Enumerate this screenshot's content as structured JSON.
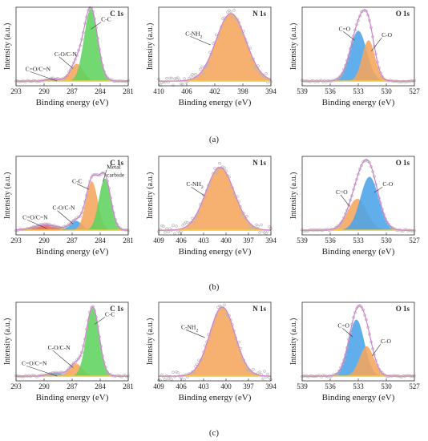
{
  "figure": {
    "rows": [
      {
        "label": "(a)"
      },
      {
        "label": "(b)"
      },
      {
        "label": "(c)"
      }
    ]
  },
  "colors": {
    "green": "#5fd35f",
    "orange": "#f5a55c",
    "blue": "#4aa3e8",
    "red": "#e8645a",
    "envelope": "#cf80cf",
    "baseline": "#f2d13c",
    "raw": "#b7b7b7"
  },
  "chart_data": [
    {
      "id": "a-C1s",
      "type": "area",
      "title": "C 1s",
      "xlabel": "Binding energy (eV)",
      "ylabel": "Intensity (a.u.)",
      "xlim": [
        293,
        281
      ],
      "xticks": [
        293,
        290,
        287,
        284,
        281
      ],
      "reverse_x": true,
      "components": [
        {
          "label": "C=O/C=N",
          "center": 289.0,
          "fwhm": 1.6,
          "amp": 0.03,
          "color": "blue"
        },
        {
          "label": "C-O/C-N",
          "center": 286.5,
          "fwhm": 1.6,
          "amp": 0.22,
          "color": "orange"
        },
        {
          "label": "C-C",
          "center": 285.0,
          "fwhm": 1.7,
          "amp": 0.92,
          "color": "green"
        }
      ],
      "annotations": [
        {
          "text": "C-C",
          "x": 283.9,
          "y": 0.82,
          "tx": 285.0,
          "ty": 0.72
        },
        {
          "text": "C-O/C-N",
          "x": 288.9,
          "y": 0.38,
          "tx": 286.9,
          "ty": 0.22
        },
        {
          "text": "C=O/C=N",
          "x": 292.0,
          "y": 0.19,
          "tx": 288.6,
          "ty": 0.06
        }
      ]
    },
    {
      "id": "a-N1s",
      "type": "area",
      "title": "N 1s",
      "xlabel": "Binding energy (eV)",
      "ylabel": "Intensity (a.u.)",
      "xlim": [
        410,
        394
      ],
      "xticks": [
        410,
        406,
        402,
        398,
        394
      ],
      "reverse_x": true,
      "components": [
        {
          "label": "C-NH2",
          "center": 399.7,
          "fwhm": 5.0,
          "amp": 0.86,
          "color": "orange"
        }
      ],
      "noisy": true,
      "annotations": [
        {
          "text": "C-NH2",
          "x": 406.2,
          "y": 0.64,
          "tx": 402.6,
          "ty": 0.52
        }
      ]
    },
    {
      "id": "a-O1s",
      "type": "area",
      "title": "O 1s",
      "xlabel": "Binding energy (eV)",
      "ylabel": "Intensity (a.u.)",
      "xlim": [
        539,
        527
      ],
      "xticks": [
        539,
        536,
        533,
        530,
        527
      ],
      "reverse_x": true,
      "components": [
        {
          "label": "C=O",
          "center": 533.0,
          "fwhm": 2.1,
          "amp": 0.64,
          "color": "blue"
        },
        {
          "label": "C-O",
          "center": 531.9,
          "fwhm": 1.6,
          "amp": 0.52,
          "color": "orange"
        }
      ],
      "annotations": [
        {
          "text": "C=O",
          "x": 535.1,
          "y": 0.7,
          "tx": 533.4,
          "ty": 0.58
        },
        {
          "text": "C-O",
          "x": 530.5,
          "y": 0.62,
          "tx": 531.6,
          "ty": 0.44
        }
      ]
    },
    {
      "id": "b-C1s",
      "type": "area",
      "title": "C 1s",
      "xlabel": "Binding energy (eV)",
      "ylabel": "Intensity (a.u.)",
      "xlim": [
        293,
        281
      ],
      "xticks": [
        293,
        290,
        287,
        284,
        281
      ],
      "reverse_x": true,
      "components": [
        {
          "label": "C=O/C=N",
          "center": 289.8,
          "fwhm": 3.0,
          "amp": 0.07,
          "color": "red"
        },
        {
          "label": "C-O/C-N",
          "center": 286.6,
          "fwhm": 1.5,
          "amp": 0.12,
          "color": "blue"
        },
        {
          "label": "C-C",
          "center": 284.9,
          "fwhm": 1.5,
          "amp": 0.62,
          "color": "orange"
        },
        {
          "label": "Metal carbide",
          "center": 283.5,
          "fwhm": 1.5,
          "amp": 0.66,
          "color": "green"
        }
      ],
      "annotations": [
        {
          "text": "Metal",
          "x": 283.3,
          "y": 0.84,
          "tx": 283.7,
          "ty": 0.68
        },
        {
          "text": "carbide",
          "x": 283.3,
          "y": 0.74,
          "tx": null,
          "ty": null
        },
        {
          "text": "C-C",
          "x": 287.0,
          "y": 0.66,
          "tx": 285.2,
          "ty": 0.58
        },
        {
          "text": "C-O/C-N",
          "x": 289.1,
          "y": 0.32,
          "tx": 286.9,
          "ty": 0.14
        },
        {
          "text": "C=O/C=N",
          "x": 292.3,
          "y": 0.2,
          "tx": 289.7,
          "ty": 0.08
        }
      ]
    },
    {
      "id": "b-N1s",
      "type": "area",
      "title": "N 1s",
      "xlabel": "Binding energy (eV)",
      "ylabel": "Intensity (a.u.)",
      "xlim": [
        409,
        394
      ],
      "xticks": [
        409,
        406,
        403,
        400,
        397,
        394
      ],
      "reverse_x": true,
      "components": [
        {
          "label": "C-NH2",
          "center": 400.8,
          "fwhm": 4.5,
          "amp": 0.8,
          "color": "orange"
        }
      ],
      "noisy": true,
      "annotations": [
        {
          "text": "C-NH2",
          "x": 405.3,
          "y": 0.62,
          "tx": 402.9,
          "ty": 0.5
        }
      ]
    },
    {
      "id": "b-O1s",
      "type": "area",
      "title": "O 1s",
      "xlabel": "Binding energy (eV)",
      "ylabel": "Intensity (a.u.)",
      "xlim": [
        539,
        527
      ],
      "xticks": [
        539,
        536,
        533,
        530,
        527
      ],
      "reverse_x": true,
      "components": [
        {
          "label": "C=O",
          "center": 533.1,
          "fwhm": 2.4,
          "amp": 0.4,
          "color": "orange"
        },
        {
          "label": "C-O",
          "center": 531.8,
          "fwhm": 2.3,
          "amp": 0.68,
          "color": "blue"
        }
      ],
      "annotations": [
        {
          "text": "C=O",
          "x": 535.4,
          "y": 0.52,
          "tx": 533.9,
          "ty": 0.36
        },
        {
          "text": "C-O",
          "x": 530.4,
          "y": 0.62,
          "tx": 531.3,
          "ty": 0.54
        }
      ]
    },
    {
      "id": "c-C1s",
      "type": "area",
      "title": "C 1s",
      "xlabel": "Binding energy (eV)",
      "ylabel": "Intensity (a.u.)",
      "xlim": [
        293,
        281
      ],
      "xticks": [
        293,
        290,
        287,
        284,
        281
      ],
      "reverse_x": true,
      "components": [
        {
          "label": "C=O/C=N",
          "center": 288.8,
          "fwhm": 1.8,
          "amp": 0.04,
          "color": "blue"
        },
        {
          "label": "C-O/C-N",
          "center": 286.6,
          "fwhm": 1.6,
          "amp": 0.16,
          "color": "orange"
        },
        {
          "label": "C-C",
          "center": 284.8,
          "fwhm": 1.6,
          "amp": 0.88,
          "color": "green"
        }
      ],
      "annotations": [
        {
          "text": "C-C",
          "x": 283.5,
          "y": 0.82,
          "tx": 284.6,
          "ty": 0.72
        },
        {
          "text": "C-O/C-N",
          "x": 289.6,
          "y": 0.4,
          "tx": 286.9,
          "ty": 0.17
        },
        {
          "text": "C=O/C=N",
          "x": 292.4,
          "y": 0.2,
          "tx": 288.6,
          "ty": 0.06
        }
      ]
    },
    {
      "id": "c-N1s",
      "type": "area",
      "title": "N 1s",
      "xlabel": "Binding energy (eV)",
      "ylabel": "Intensity (a.u.)",
      "xlim": [
        409,
        394
      ],
      "xticks": [
        409,
        406,
        403,
        400,
        397,
        394
      ],
      "reverse_x": true,
      "components": [
        {
          "label": "C-NH2",
          "center": 400.5,
          "fwhm": 4.0,
          "amp": 0.88,
          "color": "orange"
        }
      ],
      "noisy": true,
      "annotations": [
        {
          "text": "C-NH2",
          "x": 406.0,
          "y": 0.66,
          "tx": 402.8,
          "ty": 0.55
        }
      ]
    },
    {
      "id": "c-O1s",
      "type": "area",
      "title": "O 1s",
      "xlabel": "Binding energy (eV)",
      "ylabel": "Intensity (a.u.)",
      "xlim": [
        539,
        527
      ],
      "xticks": [
        539,
        536,
        533,
        530,
        527
      ],
      "reverse_x": true,
      "components": [
        {
          "label": "C=O",
          "center": 533.2,
          "fwhm": 2.0,
          "amp": 0.72,
          "color": "blue"
        },
        {
          "label": "C-O",
          "center": 532.1,
          "fwhm": 1.8,
          "amp": 0.38,
          "color": "orange"
        }
      ],
      "annotations": [
        {
          "text": "C=O",
          "x": 535.2,
          "y": 0.68,
          "tx": 533.6,
          "ty": 0.56
        },
        {
          "text": "C-O",
          "x": 530.6,
          "y": 0.48,
          "tx": 531.5,
          "ty": 0.32
        }
      ]
    }
  ]
}
